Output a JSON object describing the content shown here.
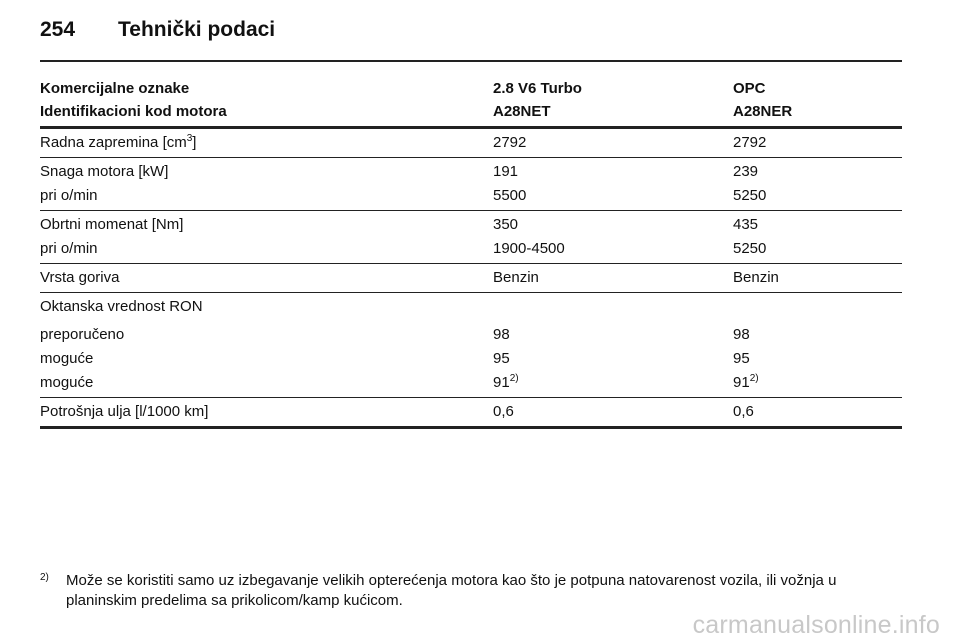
{
  "header": {
    "page_number": "254",
    "title": "Tehnički podaci"
  },
  "table": {
    "head": [
      {
        "c1": "Komercijalne oznake",
        "c2": "2.8 V6 Turbo",
        "c3": "OPC"
      },
      {
        "c1": "Identifikacioni kod motora",
        "c2": "A28NET",
        "c3": "A28NER"
      }
    ],
    "r1": {
      "c1": "Radna zapremina [cm",
      "c1_sup": "3",
      "c1_tail": "]",
      "c2": "2792",
      "c3": "2792"
    },
    "r2": {
      "c1": "Snaga motora [kW]",
      "c2": "191",
      "c3": "239"
    },
    "r3": {
      "c1": "pri o/min",
      "c2": "5500",
      "c3": "5250"
    },
    "r4": {
      "c1": "Obrtni momenat [Nm]",
      "c2": "350",
      "c3": "435"
    },
    "r5": {
      "c1": "pri o/min",
      "c2": "1900-4500",
      "c3": "5250"
    },
    "r6": {
      "c1": "Vrsta goriva",
      "c2": "Benzin",
      "c3": "Benzin"
    },
    "r7": {
      "c1": "Oktanska vrednost RON",
      "c2": "",
      "c3": ""
    },
    "r8": {
      "c1": "preporučeno",
      "c2": "98",
      "c3": "98"
    },
    "r9": {
      "c1": "moguće",
      "c2": "95",
      "c3": "95"
    },
    "r10": {
      "c1": "moguće",
      "c2": "91",
      "c2_sup": "2)",
      "c3": "91",
      "c3_sup": "2)"
    },
    "r11": {
      "c1": "Potrošnja ulja [l/1000 km]",
      "c2": "0,6",
      "c3": "0,6"
    }
  },
  "footnote": {
    "marker": "2)",
    "text": "Može se koristiti samo uz izbegavanje velikih opterećenja motora kao što je potpuna natovarenost vozila, ili vožnja u planinskim predelima sa prikolicom/kamp kućicom."
  },
  "watermark": "carmanualsonline.info"
}
